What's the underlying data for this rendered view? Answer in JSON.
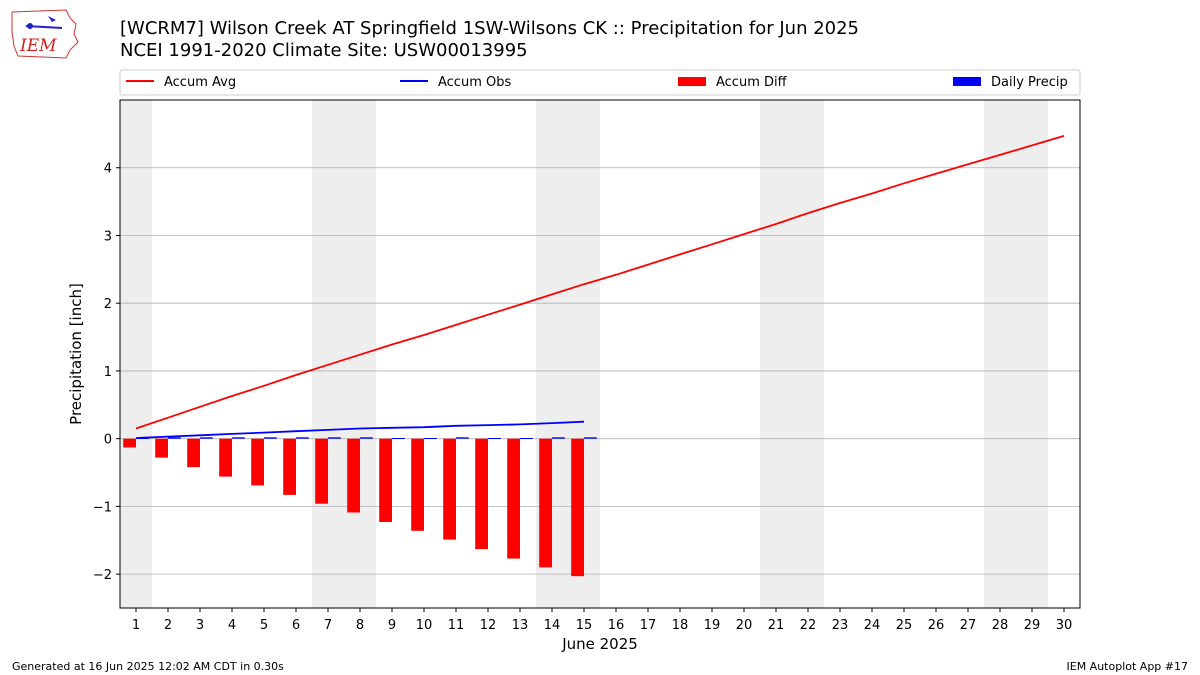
{
  "header": {
    "title_line1": "[WCRM7] Wilson Creek  AT Springfield 1SW-Wilsons CK :: Precipitation for Jun 2025",
    "title_line2": "NCEI 1991-2020 Climate Site: USW00013995",
    "logo_text": "IEM"
  },
  "footer": {
    "generated": "Generated at 16 Jun 2025 12:02 AM CDT in 0.30s",
    "app": "IEM Autoplot App #17"
  },
  "colors": {
    "accum_avg": "#ff0000",
    "accum_obs": "#0000ff",
    "accum_diff": "#ff0000",
    "daily_precip": "#0000ff",
    "weekend_shade": "#eeeeee",
    "grid": "#b0b0b0"
  },
  "chart_data": {
    "type": "bar",
    "xlabel": "June 2025",
    "ylabel": "Precipitation [inch]",
    "xlim": [
      0.5,
      30.5
    ],
    "ylim": [
      -2.5,
      5.0
    ],
    "x_ticks": [
      1,
      2,
      3,
      4,
      5,
      6,
      7,
      8,
      9,
      10,
      11,
      12,
      13,
      14,
      15,
      16,
      17,
      18,
      19,
      20,
      21,
      22,
      23,
      24,
      25,
      26,
      27,
      28,
      29,
      30
    ],
    "y_ticks": [
      -2,
      -1,
      0,
      1,
      2,
      3,
      4
    ],
    "grid": "horizontal",
    "legend_position": "top",
    "weekend_days": [
      1,
      7,
      8,
      14,
      15,
      21,
      22,
      28,
      29
    ],
    "series": [
      {
        "name": "Accum Avg",
        "kind": "line",
        "x": [
          1,
          2,
          3,
          4,
          5,
          6,
          7,
          8,
          9,
          10,
          11,
          12,
          13,
          14,
          15,
          16,
          17,
          18,
          19,
          20,
          21,
          22,
          23,
          24,
          25,
          26,
          27,
          28,
          29,
          30
        ],
        "values": [
          0.15,
          0.31,
          0.47,
          0.63,
          0.78,
          0.94,
          1.09,
          1.24,
          1.39,
          1.53,
          1.68,
          1.83,
          1.98,
          2.13,
          2.28,
          2.42,
          2.57,
          2.72,
          2.87,
          3.02,
          3.17,
          3.33,
          3.48,
          3.62,
          3.77,
          3.91,
          4.05,
          4.19,
          4.33,
          4.47
        ]
      },
      {
        "name": "Accum Obs",
        "kind": "line",
        "x": [
          1,
          2,
          3,
          4,
          5,
          6,
          7,
          8,
          9,
          10,
          11,
          12,
          13,
          14,
          15
        ],
        "values": [
          0.01,
          0.03,
          0.05,
          0.07,
          0.09,
          0.11,
          0.13,
          0.15,
          0.16,
          0.17,
          0.19,
          0.2,
          0.21,
          0.23,
          0.25
        ]
      },
      {
        "name": "Accum Diff",
        "kind": "bar",
        "x": [
          1,
          2,
          3,
          4,
          5,
          6,
          7,
          8,
          9,
          10,
          11,
          12,
          13,
          14,
          15
        ],
        "values": [
          -0.13,
          -0.28,
          -0.42,
          -0.56,
          -0.69,
          -0.83,
          -0.96,
          -1.09,
          -1.23,
          -1.36,
          -1.49,
          -1.63,
          -1.77,
          -1.9,
          -2.03
        ]
      },
      {
        "name": "Daily Precip",
        "kind": "bar",
        "x": [
          1,
          2,
          3,
          4,
          5,
          6,
          7,
          8,
          9,
          10,
          11,
          12,
          13,
          14,
          15
        ],
        "values": [
          0.01,
          0.02,
          0.02,
          0.02,
          0.02,
          0.02,
          0.02,
          0.02,
          0.01,
          0.01,
          0.02,
          0.01,
          0.01,
          0.02,
          0.02
        ]
      }
    ]
  }
}
